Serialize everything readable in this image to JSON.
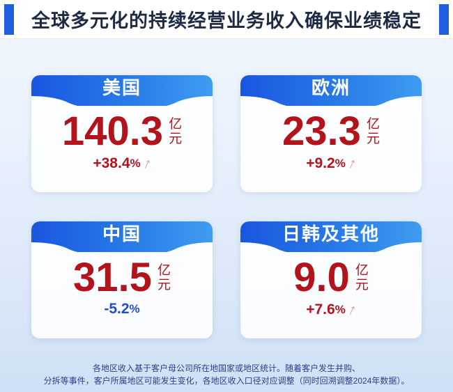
{
  "title": "全球多元化的持续经营业务收入确保业绩稳定",
  "regions": [
    {
      "name": "美国",
      "value": "140.3",
      "unit_top": "亿",
      "unit_bottom": "元",
      "change": "+38.4",
      "pct": "%",
      "direction": "up",
      "color": "#b3141c"
    },
    {
      "name": "欧洲",
      "value": "23.3",
      "unit_top": "亿",
      "unit_bottom": "元",
      "change": "+9.2",
      "pct": "%",
      "direction": "up",
      "color": "#b3141c"
    },
    {
      "name": "中国",
      "value": "31.5",
      "unit_top": "亿",
      "unit_bottom": "元",
      "change": "-5.2",
      "pct": "%",
      "direction": "down",
      "color": "#1f4fd0"
    },
    {
      "name": "日韩及其他",
      "value": "9.0",
      "unit_top": "亿",
      "unit_bottom": "元",
      "change": "+7.6",
      "pct": "%",
      "direction": "up",
      "color": "#b3141c"
    }
  ],
  "footnote": {
    "line1": "各地区收入基于客户母公司所在地国家或地区统计。随着客户发生并购、",
    "line2": "分拆等事件，客户所属地区可能发生变化，各地区收入口径对应调整（同时回溯调整2024年数据）。"
  }
}
